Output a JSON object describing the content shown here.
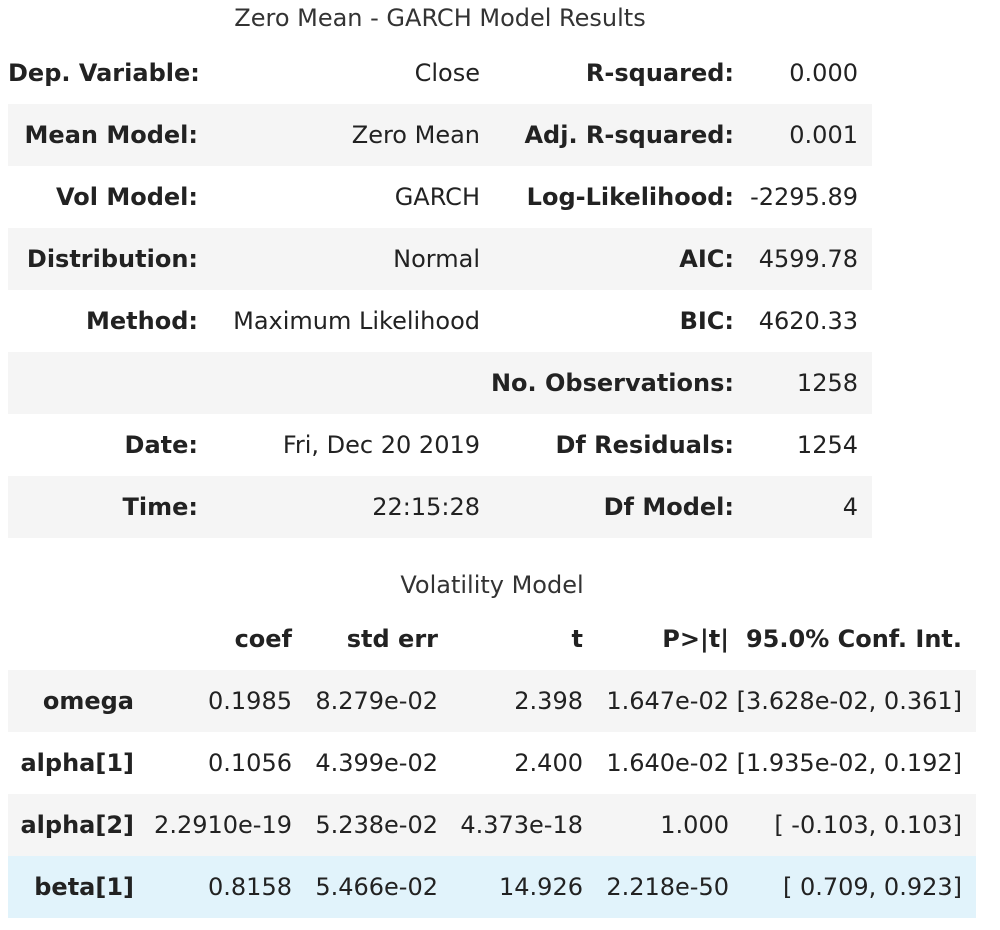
{
  "model_results": {
    "caption": "Zero Mean - GARCH Model Results",
    "rows": [
      [
        "Dep. Variable:",
        "Close",
        "R-squared:",
        "0.000"
      ],
      [
        "Mean Model:",
        "Zero Mean",
        "Adj. R-squared:",
        "0.001"
      ],
      [
        "Vol Model:",
        "GARCH",
        "Log-Likelihood:",
        "-2295.89"
      ],
      [
        "Distribution:",
        "Normal",
        "AIC:",
        "4599.78"
      ],
      [
        "Method:",
        "Maximum Likelihood",
        "BIC:",
        "4620.33"
      ],
      [
        "",
        "",
        "No. Observations:",
        "1258"
      ],
      [
        "Date:",
        "Fri, Dec 20 2019",
        "Df Residuals:",
        "1254"
      ],
      [
        "Time:",
        "22:15:28",
        "Df Model:",
        "4"
      ]
    ]
  },
  "volatility_model": {
    "caption": "Volatility Model",
    "headers": [
      "",
      "coef",
      "std err",
      "t",
      "P>|t|",
      "95.0% Conf. Int."
    ],
    "rows": [
      [
        "omega",
        "0.1985",
        "8.279e-02",
        "2.398",
        "1.647e-02",
        "[3.628e-02, 0.361]"
      ],
      [
        "alpha[1]",
        "0.1056",
        "4.399e-02",
        "2.400",
        "1.640e-02",
        "[1.935e-02, 0.192]"
      ],
      [
        "alpha[2]",
        "2.2910e-19",
        "5.238e-02",
        "4.373e-18",
        "1.000",
        "[ -0.103, 0.103]"
      ],
      [
        "beta[1]",
        "0.8158",
        "5.466e-02",
        "14.926",
        "2.218e-50",
        "[ 0.709, 0.923]"
      ]
    ],
    "highlighted_row": 3,
    "highlight_color": "#e1f3fb"
  },
  "colors": {
    "stripe": "#f5f5f5",
    "highlight": "#e1f3fb",
    "text": "#222222"
  }
}
